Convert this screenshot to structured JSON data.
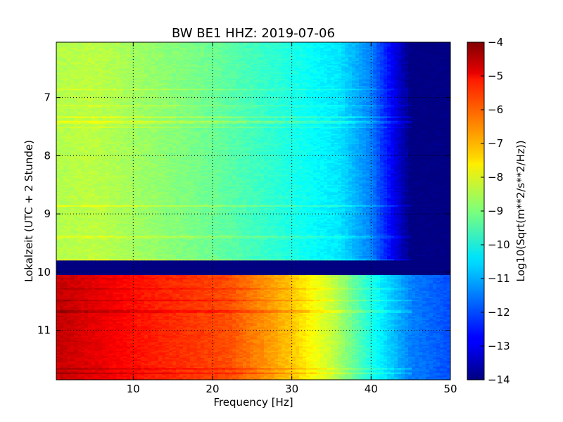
{
  "chart_data": {
    "type": "heatmap",
    "title": "BW BE1 HHZ: 2019-07-06",
    "xlabel": "Frequency [Hz]",
    "ylabel": "Lokalzeit (UTC + 2 Stunde)",
    "xlim": [
      0.3,
      50
    ],
    "ylim": [
      11.85,
      6.05
    ],
    "x_ticks": [
      10,
      20,
      30,
      40,
      50
    ],
    "y_ticks": [
      7,
      8,
      9,
      10,
      11
    ],
    "grid": true,
    "colormap": "jet",
    "colorbar": {
      "label": "Log10(Sqrt(m**2/s**2/Hz))",
      "range": [
        -14,
        -4
      ],
      "ticks": [
        -4,
        -5,
        -6,
        -7,
        -8,
        -9,
        -10,
        -11,
        -12,
        -13,
        -14
      ]
    },
    "regions": [
      {
        "time_start": 6.05,
        "time_end": 9.8,
        "anchors_hz": [
          0.3,
          5,
          20,
          30,
          36,
          40,
          42,
          45,
          50
        ],
        "anchors_value": [
          -8.5,
          -8.4,
          -9.2,
          -10.0,
          -10.5,
          -11.5,
          -12.5,
          -14,
          -14
        ]
      },
      {
        "time_start": 9.8,
        "time_end": 10.05,
        "anchors_hz": [
          0.3,
          50
        ],
        "anchors_value": [
          -14,
          -14
        ]
      },
      {
        "time_start": 10.05,
        "time_end": 11.85,
        "anchors_hz": [
          0.3,
          0.5,
          1,
          12,
          22,
          30,
          35,
          40,
          45,
          50
        ],
        "anchors_value": [
          -5.4,
          -4.8,
          -4.7,
          -5.5,
          -6.0,
          -7.2,
          -8.3,
          -10.0,
          -11.5,
          -12.0
        ]
      }
    ]
  }
}
